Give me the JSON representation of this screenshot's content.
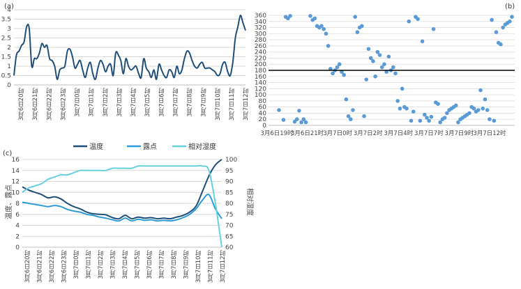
{
  "chart_data": [
    {
      "panel": "(a)",
      "type": "line",
      "ylim": [
        0,
        4
      ],
      "yticks": [
        "0",
        "0.5",
        "1",
        "1.5",
        "2",
        "2.5",
        "3",
        "3.5",
        "4"
      ],
      "xtick_labels": [
        "3月6日20时",
        "3月6日21时",
        "3月6日22时",
        "3月6日23时",
        "3月7日0时",
        "3月7日1时",
        "3月7日2时",
        "3月7日3时",
        "3月7日4时",
        "3月7日5时",
        "3月7日6时",
        "3月7日7时",
        "3月7日8时",
        "3月7日9时",
        "3月7日10时",
        "3月7日11时",
        "3月7日12时"
      ],
      "series": [
        {
          "color": "#1f4e79",
          "values": [
            0.5,
            1.6,
            1.8,
            2.1,
            2.3,
            3.1,
            3.0,
            1.0,
            1.4,
            1.4,
            1.7,
            2.2,
            2.0,
            2.1,
            1.4,
            1.3,
            1.0,
            0.3,
            0.8,
            0.9,
            1.0,
            1.8,
            1.9,
            1.5,
            0.9,
            1.1,
            1.3,
            0.8,
            0.4,
            0.9,
            1.2,
            0.6,
            0.3,
            0.9,
            1.3,
            1.1,
            0.7,
            1.0,
            1.1,
            0.5,
            1.7,
            1.6,
            1.3,
            0.6,
            1.4,
            1.0,
            0.8,
            0.9,
            1.0,
            0.6,
            0.4,
            1.4,
            0.9,
            0.7,
            0.4,
            0.8,
            0.3,
            1.1,
            0.8,
            0.5,
            0.4,
            0.8,
            0.7,
            0.4,
            1.0,
            0.6,
            0.8,
            1.4,
            1.8,
            1.7,
            1.3,
            1.0,
            0.9,
            1.1,
            1.2,
            0.9,
            0.9,
            0.9,
            0.8,
            0.7,
            0.5,
            0.6,
            1.1,
            1.2,
            0.7,
            0.5,
            1.2,
            2.5,
            3.1,
            3.7,
            3.3,
            2.9
          ]
        }
      ]
    },
    {
      "panel": "(b)",
      "type": "scatter",
      "ylim": [
        0,
        360
      ],
      "yticks": [
        "0",
        "20",
        "40",
        "60",
        "80",
        "100",
        "120",
        "140",
        "160",
        "180",
        "200",
        "220",
        "240",
        "260",
        "280",
        "300",
        "320",
        "340",
        "360"
      ],
      "reference_line": 180,
      "xtick_labels": [
        "3月6日19时",
        "3月6日21时",
        "3月7日0时",
        "3月7日2时",
        "3月7日4时",
        "3月7日7时",
        "3月7日9时",
        "3月7日12时"
      ],
      "color": "#5b9bd5",
      "points": [
        [
          0,
          50
        ],
        [
          0.4,
          18
        ],
        [
          0.6,
          355
        ],
        [
          0.8,
          350
        ],
        [
          1.0,
          358
        ],
        [
          1.4,
          12
        ],
        [
          1.6,
          20
        ],
        [
          1.8,
          48
        ],
        [
          2.0,
          10
        ],
        [
          2.2,
          20
        ],
        [
          2.4,
          10
        ],
        [
          2.8,
          358
        ],
        [
          3.0,
          345
        ],
        [
          3.2,
          350
        ],
        [
          3.4,
          325
        ],
        [
          3.6,
          320
        ],
        [
          3.8,
          325
        ],
        [
          4.0,
          315
        ],
        [
          4.2,
          300
        ],
        [
          4.4,
          260
        ],
        [
          4.6,
          185
        ],
        [
          4.8,
          170
        ],
        [
          5.0,
          180
        ],
        [
          5.2,
          190
        ],
        [
          5.4,
          200
        ],
        [
          5.6,
          175
        ],
        [
          5.8,
          165
        ],
        [
          6.0,
          85
        ],
        [
          6.2,
          30
        ],
        [
          6.4,
          20
        ],
        [
          6.6,
          50
        ],
        [
          6.8,
          355
        ],
        [
          7.0,
          305
        ],
        [
          7.2,
          320
        ],
        [
          7.4,
          325
        ],
        [
          7.6,
          30
        ],
        [
          7.8,
          150
        ],
        [
          8.0,
          250
        ],
        [
          8.2,
          220
        ],
        [
          8.4,
          210
        ],
        [
          8.6,
          160
        ],
        [
          8.8,
          240
        ],
        [
          9.0,
          230
        ],
        [
          9.2,
          190
        ],
        [
          9.4,
          200
        ],
        [
          9.6,
          175
        ],
        [
          9.8,
          225
        ],
        [
          10.0,
          180
        ],
        [
          10.2,
          190
        ],
        [
          10.4,
          170
        ],
        [
          10.6,
          80
        ],
        [
          10.8,
          55
        ],
        [
          11.0,
          120
        ],
        [
          11.2,
          60
        ],
        [
          11.4,
          55
        ],
        [
          11.6,
          340
        ],
        [
          11.8,
          15
        ],
        [
          12.0,
          45
        ],
        [
          12.2,
          355
        ],
        [
          12.4,
          348
        ],
        [
          12.6,
          15
        ],
        [
          12.8,
          275
        ],
        [
          13.0,
          35
        ],
        [
          13.2,
          25
        ],
        [
          13.4,
          15
        ],
        [
          13.6,
          28
        ],
        [
          13.8,
          315
        ],
        [
          14.0,
          75
        ],
        [
          14.2,
          70
        ],
        [
          14.4,
          10
        ],
        [
          14.6,
          20
        ],
        [
          14.8,
          25
        ],
        [
          15.0,
          40
        ],
        [
          15.2,
          50
        ],
        [
          15.4,
          55
        ],
        [
          15.6,
          60
        ],
        [
          15.8,
          65
        ],
        [
          16.0,
          10
        ],
        [
          16.2,
          20
        ],
        [
          16.4,
          25
        ],
        [
          16.6,
          30
        ],
        [
          16.8,
          35
        ],
        [
          17.0,
          40
        ],
        [
          17.2,
          60
        ],
        [
          17.4,
          55
        ],
        [
          17.6,
          45
        ],
        [
          17.8,
          50
        ],
        [
          18.0,
          115
        ],
        [
          18.2,
          55
        ],
        [
          18.4,
          85
        ],
        [
          18.6,
          50
        ],
        [
          18.8,
          20
        ],
        [
          19.0,
          345
        ],
        [
          19.2,
          15
        ],
        [
          19.4,
          305
        ],
        [
          19.6,
          270
        ],
        [
          19.8,
          265
        ],
        [
          20.0,
          320
        ],
        [
          20.2,
          330
        ],
        [
          20.4,
          335
        ],
        [
          20.6,
          340
        ],
        [
          20.8,
          355
        ]
      ]
    },
    {
      "panel": "(c)",
      "type": "line",
      "ylabel": "温度、露点",
      "ylabel_right": "相对湿度",
      "ylim": [
        0,
        16
      ],
      "ylim_right": [
        60,
        100
      ],
      "yticks": [
        "0",
        "2",
        "4",
        "6",
        "8",
        "10",
        "12",
        "14",
        "16"
      ],
      "yticks_right": [
        "60",
        "65",
        "70",
        "75",
        "80",
        "85",
        "90",
        "95",
        "100"
      ],
      "xtick_labels": [
        "3月6日20时",
        "3月6日21时",
        "3月6日22时",
        "3月6日23时",
        "3月7日0时",
        "3月7日1时",
        "3月7日2时",
        "3月7日3时",
        "3月7日4时",
        "3月7日5时",
        "3月7日6时",
        "3月7日7时",
        "3月7日8时",
        "3月7日9时",
        "3月7日10时",
        "3月7日11时",
        "3月7日12时"
      ],
      "legend": [
        "温度",
        "露点",
        "相对湿度"
      ],
      "series": [
        {
          "name": "温度",
          "axis": "left",
          "color": "#1f4e79",
          "values": [
            11.0,
            10.4,
            10.0,
            9.6,
            9.0,
            9.2,
            8.8,
            8.0,
            7.4,
            7.0,
            6.4,
            6.1,
            6.0,
            5.9,
            5.4,
            5.2,
            5.8,
            5.2,
            5.5,
            5.3,
            5.4,
            5.2,
            5.3,
            5.2,
            5.5,
            5.8,
            6.4,
            7.5,
            10.2,
            13.0,
            15.0,
            16.0
          ]
        },
        {
          "name": "露点",
          "axis": "left",
          "color": "#2e9bd6",
          "values": [
            8.2,
            8.0,
            7.8,
            7.6,
            7.4,
            7.6,
            7.4,
            6.9,
            6.6,
            6.4,
            6.0,
            5.8,
            5.5,
            5.3,
            5.0,
            4.8,
            5.3,
            4.8,
            5.1,
            4.9,
            5.0,
            4.8,
            4.9,
            4.8,
            5.0,
            5.4,
            6.0,
            7.0,
            8.6,
            9.6,
            7.0,
            5.2
          ]
        },
        {
          "name": "相对湿度",
          "axis": "right",
          "color": "#66d0dc",
          "values": [
            85,
            87,
            88,
            89,
            91,
            92,
            93,
            93,
            94,
            95,
            95,
            95,
            95,
            95,
            96,
            96,
            96,
            96,
            97,
            97,
            97,
            97,
            97,
            97,
            97,
            97,
            97,
            97,
            97,
            95,
            80,
            60
          ]
        }
      ]
    }
  ]
}
